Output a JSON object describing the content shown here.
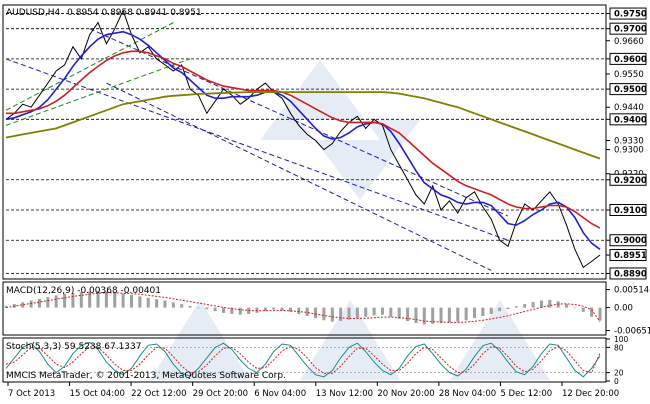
{
  "header": {
    "symbol": "AUDUSD,H4",
    "ohlc": "0.8954 0.8958 0.8941 0.8951"
  },
  "colors": {
    "price": "#000000",
    "ma_fast": "#1f1fd6",
    "ma_mid": "#d01f1f",
    "ma_slow": "#808000",
    "channel": "#1f1fa0",
    "support_channel": "#128a12",
    "macd_hist": "#a0a0a0",
    "macd_signal": "#d01f1f",
    "stoch_main": "#1a8c8c",
    "stoch_signal": "#d01f1f",
    "watermark": "#c8d4ec"
  },
  "chart_data": [
    {
      "type": "line",
      "panel": "price",
      "title": "AUDUSD,H4",
      "ohlc_text": "0.8954 0.8958 0.8941 0.8951",
      "ylim": [
        0.8875,
        0.9775
      ],
      "price_levels": [
        "0.9750",
        "0.9700",
        "0.9600",
        "0.9500",
        "0.9400",
        "0.9200",
        "0.9100",
        "0.9000",
        "0.8890"
      ],
      "price_ticks": [
        "0.9750",
        "0.9700",
        "0.9660",
        "0.9600",
        "0.9550",
        "0.9500",
        "0.9440",
        "0.9400",
        "0.9330",
        "0.9300",
        "0.9220",
        "0.9200",
        "0.9100",
        "0.9000",
        "0.8951",
        "0.8890"
      ],
      "current_price": "0.8951",
      "x_labels": [
        "7 Oct 2013",
        "15 Oct 04:00",
        "22 Oct 12:00",
        "29 Oct 20:00",
        "6 Nov 04:00",
        "13 Nov 12:00",
        "20 Nov 20:00",
        "28 Nov 04:00",
        "5 Dec 12:00",
        "12 Dec 20:00"
      ],
      "series": [
        {
          "key": "price",
          "values": [
            0.94,
            0.942,
            0.945,
            0.944,
            0.948,
            0.952,
            0.956,
            0.958,
            0.964,
            0.96,
            0.968,
            0.972,
            0.965,
            0.97,
            0.976,
            0.968,
            0.962,
            0.964,
            0.96,
            0.958,
            0.956,
            0.958,
            0.95,
            0.948,
            0.942,
            0.946,
            0.95,
            0.948,
            0.945,
            0.947,
            0.95,
            0.952,
            0.949,
            0.947,
            0.942,
            0.938,
            0.935,
            0.933,
            0.93,
            0.932,
            0.936,
            0.939,
            0.941,
            0.937,
            0.94,
            0.938,
            0.93,
            0.925,
            0.92,
            0.915,
            0.912,
            0.918,
            0.91,
            0.913,
            0.909,
            0.914,
            0.916,
            0.911,
            0.907,
            0.9,
            0.898,
            0.906,
            0.912,
            0.91,
            0.913,
            0.916,
            0.912,
            0.905,
            0.897,
            0.891,
            0.893,
            0.8951
          ]
        },
        {
          "key": "ma_fast",
          "values": [
            0.94,
            0.9405,
            0.9415,
            0.9425,
            0.944,
            0.9465,
            0.95,
            0.9535,
            0.9575,
            0.961,
            0.964,
            0.9665,
            0.968,
            0.9685,
            0.969,
            0.968,
            0.9665,
            0.9645,
            0.962,
            0.9595,
            0.957,
            0.9555,
            0.953,
            0.9505,
            0.948,
            0.947,
            0.947,
            0.9475,
            0.9475,
            0.9475,
            0.948,
            0.949,
            0.949,
            0.948,
            0.946,
            0.943,
            0.94,
            0.937,
            0.9345,
            0.9335,
            0.934,
            0.9355,
            0.9375,
            0.9385,
            0.939,
            0.9385,
            0.936,
            0.932,
            0.9275,
            0.923,
            0.919,
            0.917,
            0.915,
            0.914,
            0.9125,
            0.912,
            0.9125,
            0.9125,
            0.9115,
            0.9085,
            0.9055,
            0.905,
            0.9065,
            0.9085,
            0.91,
            0.912,
            0.9125,
            0.911,
            0.9075,
            0.9025,
            0.899,
            0.897
          ]
        },
        {
          "key": "ma_mid",
          "values": [
            0.942,
            0.942,
            0.9425,
            0.943,
            0.9435,
            0.9445,
            0.946,
            0.948,
            0.9505,
            0.953,
            0.9555,
            0.9575,
            0.9595,
            0.961,
            0.962,
            0.9625,
            0.9625,
            0.962,
            0.961,
            0.96,
            0.9585,
            0.9575,
            0.956,
            0.9545,
            0.953,
            0.952,
            0.951,
            0.9505,
            0.95,
            0.9495,
            0.9495,
            0.9495,
            0.9495,
            0.949,
            0.948,
            0.9465,
            0.945,
            0.9435,
            0.942,
            0.9405,
            0.9395,
            0.939,
            0.939,
            0.939,
            0.939,
            0.9385,
            0.937,
            0.9355,
            0.933,
            0.9305,
            0.928,
            0.9255,
            0.9235,
            0.9215,
            0.9195,
            0.918,
            0.917,
            0.916,
            0.915,
            0.9135,
            0.912,
            0.911,
            0.9105,
            0.9105,
            0.911,
            0.9115,
            0.9115,
            0.911,
            0.9095,
            0.9075,
            0.9055,
            0.904
          ]
        },
        {
          "key": "ma_slow",
          "values": [
            0.934,
            0.9345,
            0.935,
            0.9355,
            0.936,
            0.9365,
            0.937,
            0.938,
            0.939,
            0.94,
            0.941,
            0.942,
            0.943,
            0.944,
            0.945,
            0.9455,
            0.946,
            0.9465,
            0.947,
            0.9475,
            0.9478,
            0.948,
            0.9482,
            0.9484,
            0.9485,
            0.9486,
            0.9487,
            0.9488,
            0.9489,
            0.949,
            0.949,
            0.949,
            0.949,
            0.949,
            0.949,
            0.949,
            0.949,
            0.949,
            0.949,
            0.949,
            0.949,
            0.949,
            0.949,
            0.949,
            0.949,
            0.949,
            0.9488,
            0.9485,
            0.948,
            0.9475,
            0.947,
            0.9462,
            0.9455,
            0.9447,
            0.944,
            0.943,
            0.942,
            0.941,
            0.94,
            0.939,
            0.938,
            0.937,
            0.936,
            0.935,
            0.934,
            0.933,
            0.932,
            0.931,
            0.93,
            0.929,
            0.928,
            0.927
          ]
        }
      ]
    },
    {
      "type": "bar",
      "panel": "macd",
      "title": "MACD(12,26,9) -0.00368 -0.00401",
      "ylim": [
        -0.0075,
        0.007
      ],
      "ticks": [
        "0.00514",
        "0.00",
        "-0.00651"
      ],
      "histogram": [
        0.0005,
        0.001,
        0.0015,
        0.002,
        0.0025,
        0.003,
        0.0035,
        0.004,
        0.0042,
        0.0044,
        0.0046,
        0.0048,
        0.0046,
        0.0043,
        0.004,
        0.0036,
        0.0032,
        0.0028,
        0.0024,
        0.002,
        0.0015,
        0.001,
        0.0005,
        0.0,
        -0.0005,
        -0.001,
        -0.0015,
        -0.0018,
        -0.002,
        -0.0018,
        -0.0015,
        -0.001,
        -0.0005,
        -0.0008,
        -0.0012,
        -0.0018,
        -0.0024,
        -0.003,
        -0.0036,
        -0.004,
        -0.0038,
        -0.0034,
        -0.003,
        -0.0026,
        -0.0022,
        -0.002,
        -0.0026,
        -0.0032,
        -0.0038,
        -0.0044,
        -0.0048,
        -0.0046,
        -0.0044,
        -0.0042,
        -0.004,
        -0.0036,
        -0.003,
        -0.0024,
        -0.0018,
        -0.001,
        -0.0004,
        0.0004,
        0.001,
        0.0016,
        0.002,
        0.0022,
        0.0018,
        0.001,
        0.0,
        -0.0012,
        -0.0026,
        -0.0037
      ],
      "signal": [
        0.0,
        0.0004,
        0.0008,
        0.0012,
        0.0016,
        0.002,
        0.0024,
        0.0028,
        0.0032,
        0.0035,
        0.0038,
        0.0041,
        0.0042,
        0.0042,
        0.0041,
        0.004,
        0.0038,
        0.0035,
        0.0032,
        0.0029,
        0.0025,
        0.0021,
        0.0017,
        0.0013,
        0.0009,
        0.0005,
        0.0001,
        -0.0003,
        -0.0006,
        -0.0008,
        -0.0009,
        -0.0009,
        -0.0008,
        -0.0008,
        -0.0009,
        -0.0011,
        -0.0014,
        -0.0018,
        -0.0022,
        -0.0026,
        -0.0029,
        -0.0031,
        -0.0031,
        -0.003,
        -0.0029,
        -0.0027,
        -0.0027,
        -0.0028,
        -0.0031,
        -0.0034,
        -0.0038,
        -0.004,
        -0.0041,
        -0.0042,
        -0.0042,
        -0.0041,
        -0.0039,
        -0.0036,
        -0.0032,
        -0.0028,
        -0.0023,
        -0.0017,
        -0.0011,
        -0.0005,
        0.0001,
        0.0006,
        0.001,
        0.0011,
        0.0009,
        0.0004,
        -0.0006,
        -0.004
      ]
    },
    {
      "type": "line",
      "panel": "stoch",
      "title": "Stoch(5,3,3) 59.5238 67.1337",
      "ylim": [
        0,
        100
      ],
      "ticks": [
        "100",
        "80",
        "20",
        "0"
      ],
      "series": [
        {
          "key": "main",
          "values": [
            30,
            55,
            80,
            90,
            70,
            40,
            20,
            35,
            65,
            85,
            92,
            75,
            45,
            25,
            15,
            30,
            60,
            85,
            88,
            70,
            40,
            18,
            12,
            30,
            55,
            80,
            90,
            75,
            50,
            30,
            20,
            40,
            70,
            88,
            85,
            60,
            35,
            15,
            10,
            25,
            55,
            80,
            90,
            70,
            45,
            25,
            15,
            30,
            60,
            82,
            88,
            65,
            40,
            20,
            12,
            28,
            58,
            84,
            90,
            72,
            45,
            22,
            15,
            35,
            65,
            88,
            85,
            55,
            25,
            10,
            30,
            60
          ]
        },
        {
          "key": "signal",
          "values": [
            40,
            45,
            62,
            80,
            78,
            60,
            40,
            32,
            45,
            65,
            82,
            80,
            62,
            40,
            25,
            25,
            40,
            62,
            80,
            78,
            58,
            35,
            20,
            22,
            38,
            60,
            78,
            80,
            65,
            45,
            30,
            32,
            50,
            72,
            82,
            75,
            55,
            32,
            18,
            18,
            35,
            58,
            78,
            78,
            60,
            40,
            25,
            25,
            42,
            65,
            80,
            75,
            55,
            35,
            20,
            22,
            40,
            65,
            82,
            78,
            58,
            35,
            22,
            28,
            48,
            72,
            82,
            72,
            48,
            25,
            20,
            67
          ]
        }
      ]
    }
  ],
  "footer": {
    "copyright": "MMCIS MetaTrader, © 2001-2013, MetaQuotes Software Corp."
  }
}
